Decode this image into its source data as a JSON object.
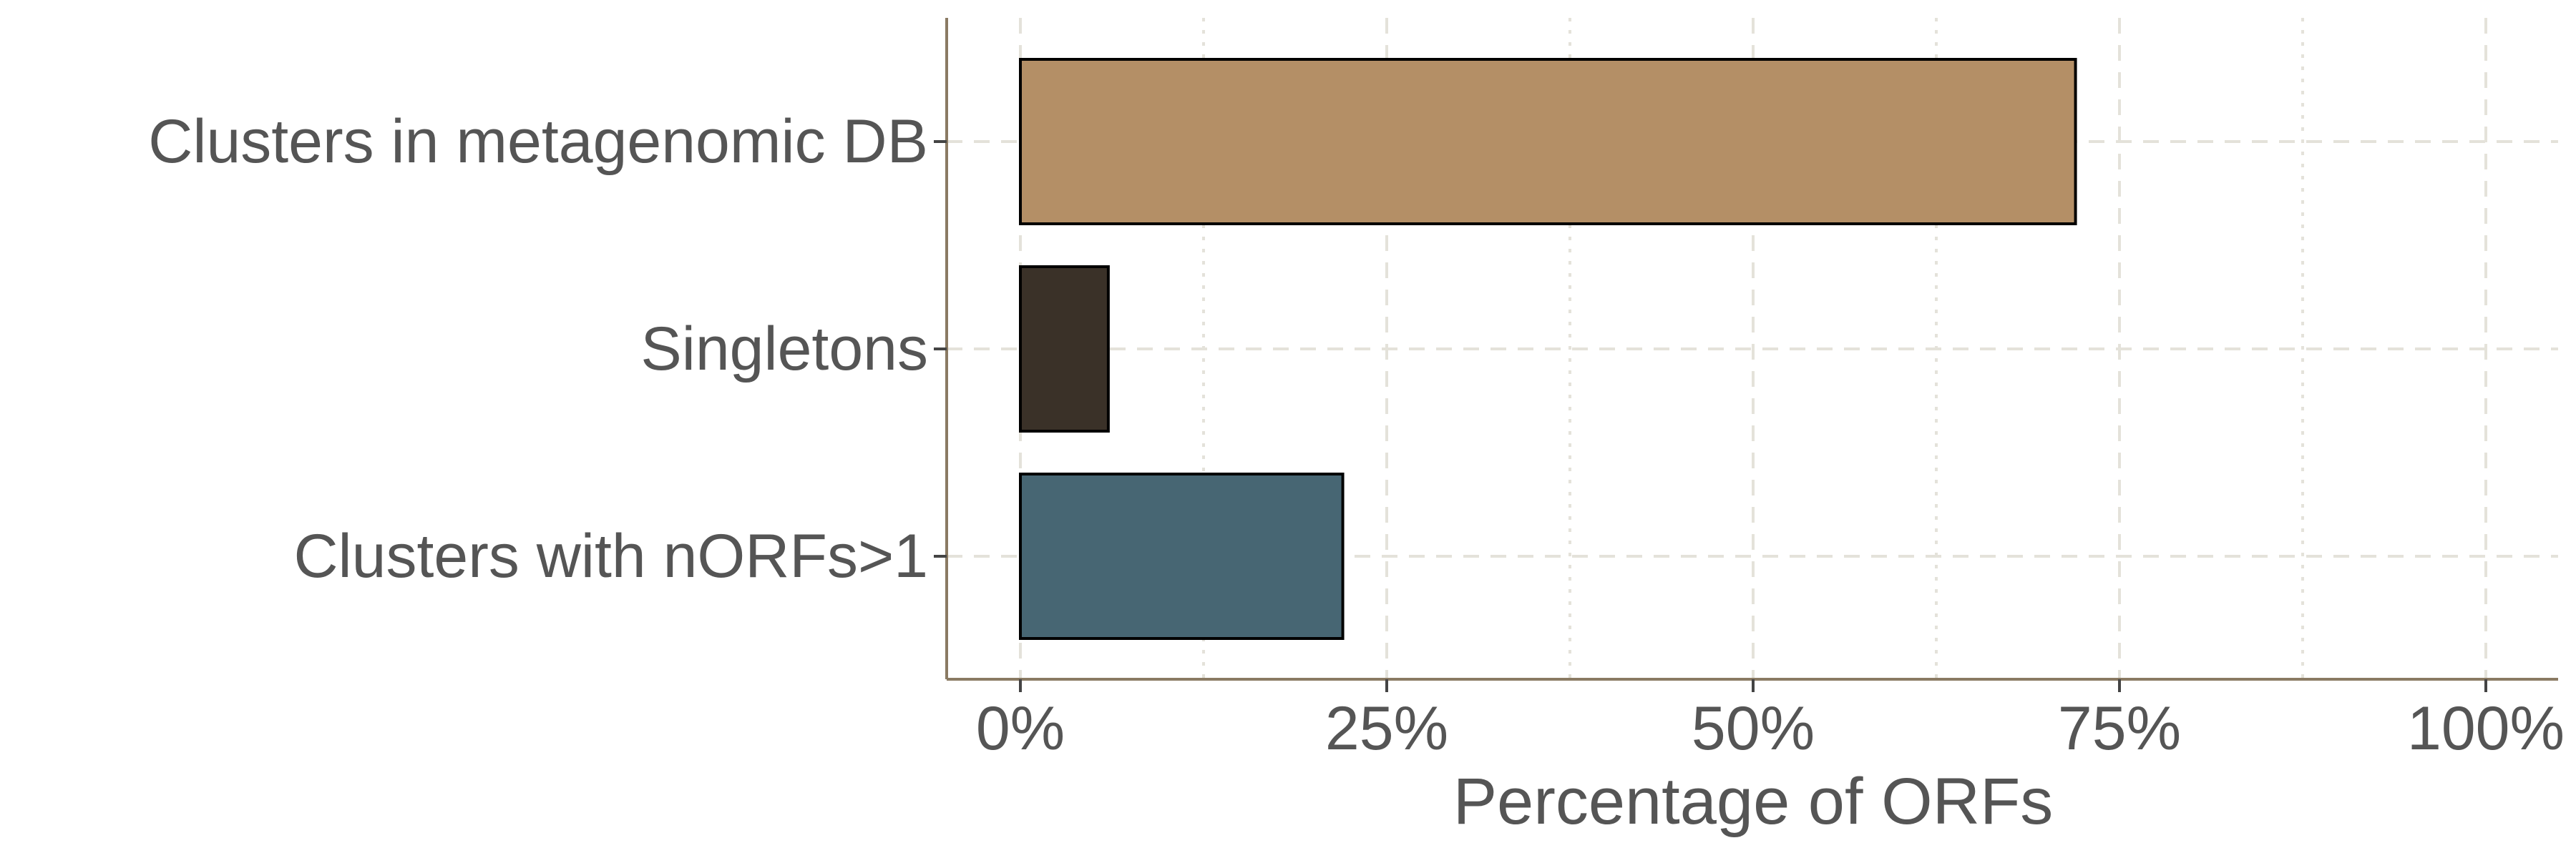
{
  "chart_data": {
    "type": "bar",
    "orientation": "horizontal",
    "categories": [
      "Clusters in metagenomic DB",
      "Singletons",
      "Clusters with nORFs>1"
    ],
    "values": [
      72,
      6,
      22
    ],
    "colors": [
      "#b48f66",
      "#3a3128",
      "#476673"
    ],
    "bar_outline": "#000000",
    "xlabel": "Percentage of ORFs",
    "ylabel": "",
    "title": "",
    "xlim": [
      0,
      100
    ],
    "x_ticks": [
      0,
      25,
      50,
      75,
      100
    ],
    "x_tick_labels": [
      "0%",
      "25%",
      "50%",
      "75%",
      "100%"
    ],
    "grid": true,
    "legend": "none",
    "axis_color": "#8a7a63",
    "grid_color": "#e4e2da"
  }
}
